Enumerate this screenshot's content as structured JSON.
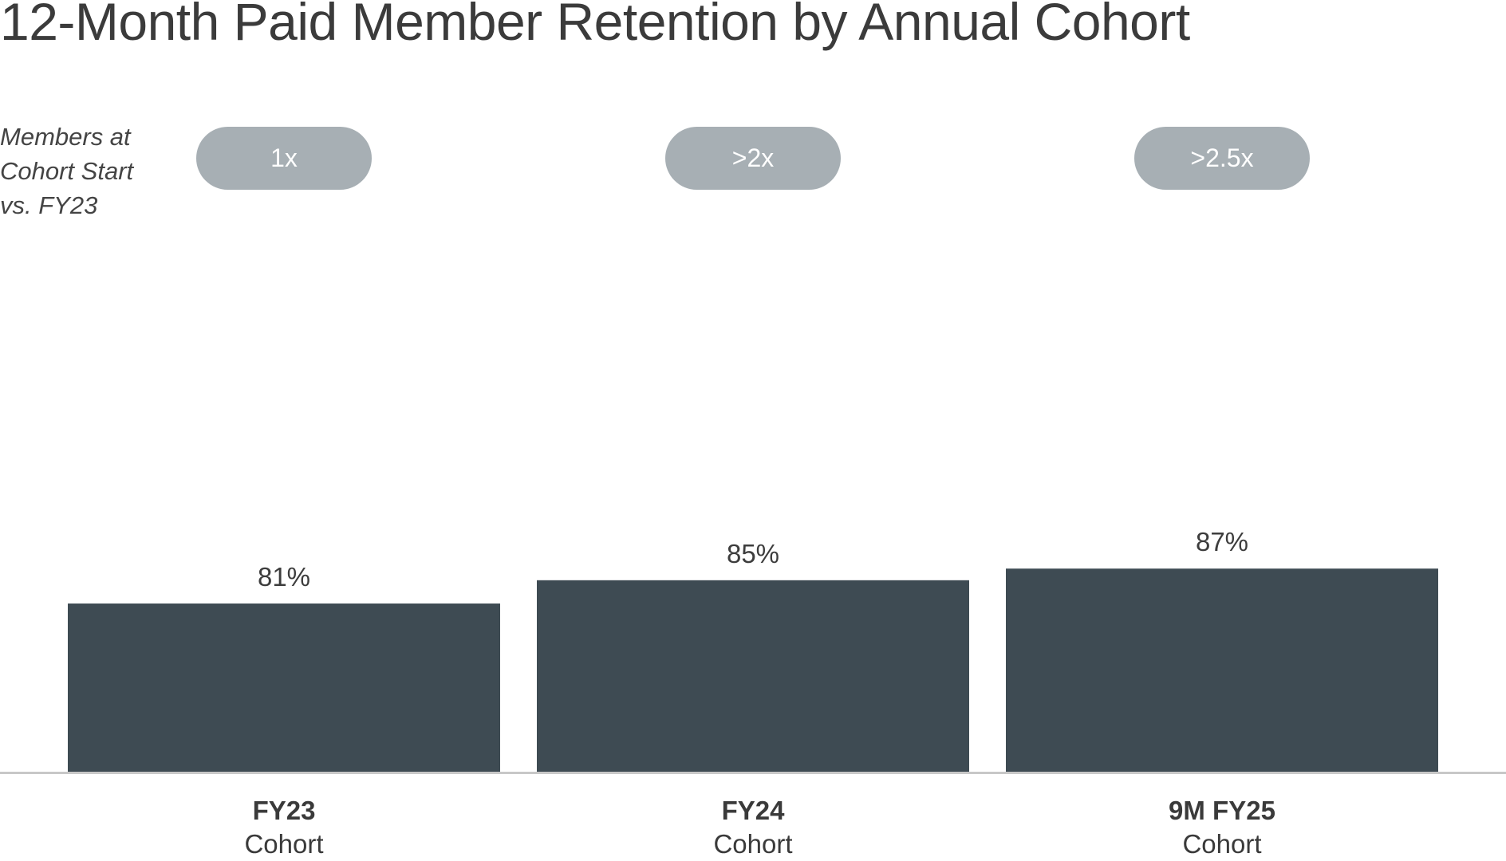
{
  "chart_data": {
    "type": "bar",
    "title": "12-Month Paid Member Retention by Annual Cohort",
    "categories": [
      {
        "main": "FY23",
        "sub": "Cohort"
      },
      {
        "main": "FY24",
        "sub": "Cohort"
      },
      {
        "main": "9M FY25",
        "sub": "Cohort"
      }
    ],
    "values": [
      81,
      85,
      87
    ],
    "data_labels": [
      "81%",
      "85%",
      "87%"
    ],
    "bar_color": "#3e4b53",
    "baseline_color": "#c8c8c8",
    "annotation_row": {
      "label_lines": [
        "Members at",
        "Cohort Start",
        "vs. FY23"
      ],
      "values": [
        "1x",
        ">2x",
        ">2.5x"
      ],
      "pill_color": "#a7afb4"
    },
    "grid": false,
    "legend": "none"
  }
}
